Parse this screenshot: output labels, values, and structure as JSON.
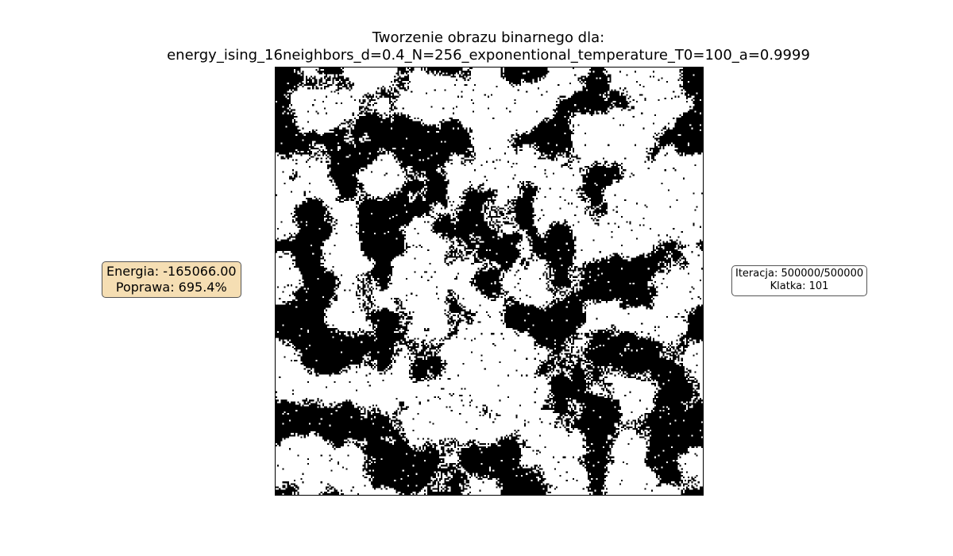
{
  "chart_data": {
    "type": "heatmap",
    "title_line_1": "Tworzenie obrazu binarnego dla:",
    "title_line_2": "energy_ising_16neighbors_d=0.4_N=256_exponentional_temperature_T0=100_a=0.9999",
    "grid_size": 256,
    "colors": {
      "spin_up": "#000000",
      "spin_down": "#ffffff"
    },
    "axes_visible": false,
    "black_fraction": 0.42,
    "energy_label": "Energia: -165066.00",
    "improvement_label": "Poprawa: 695.4%",
    "iteration_label": "Iteracja: 500000/500000",
    "frame_label": "Klatka: 101"
  },
  "colors": {
    "energy_box_bg": "#f5deb3",
    "info_box_border": "#555555"
  }
}
